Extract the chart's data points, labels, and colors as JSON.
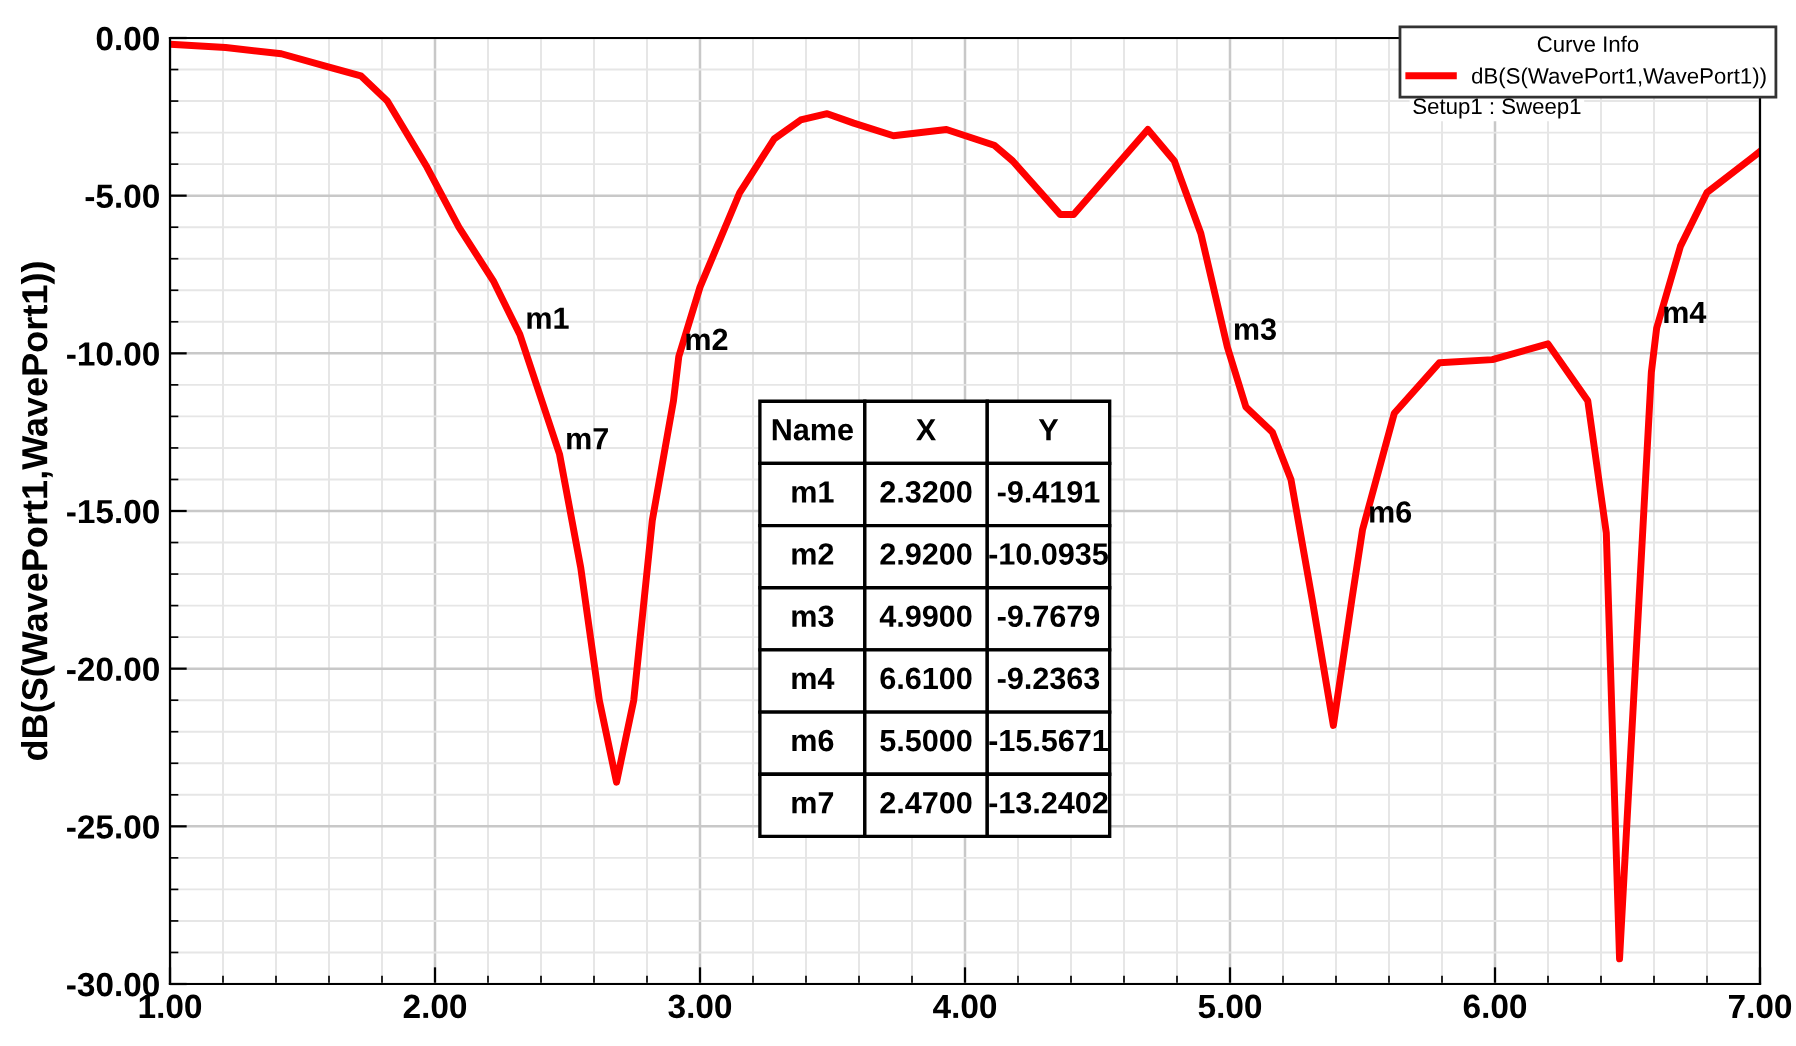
{
  "chart_data": {
    "type": "line",
    "ylabel": "dB(S(WavePort1,WavePort1))",
    "legend_title": "Curve Info",
    "legend": "top right",
    "grid": true,
    "line_style": "solid",
    "xlim": [
      1.0,
      7.0
    ],
    "xticks": [
      {
        "value": 1,
        "label": "1.00"
      },
      {
        "value": 2,
        "label": "2.00"
      },
      {
        "value": 3,
        "label": "3.00"
      },
      {
        "value": 4,
        "label": "4.00"
      },
      {
        "value": 5,
        "label": "5.00"
      },
      {
        "value": 6,
        "label": "6.00"
      },
      {
        "value": 7,
        "label": "7.00"
      }
    ],
    "ylim": [
      -30.0,
      0.0
    ],
    "yticks": [
      {
        "value": 0,
        "label": "0.00"
      },
      {
        "value": -5,
        "label": "-5.00"
      },
      {
        "value": -10,
        "label": "-10.00"
      },
      {
        "value": -15,
        "label": "-15.00"
      },
      {
        "value": -20,
        "label": "-20.00"
      },
      {
        "value": -25,
        "label": "-25.00"
      },
      {
        "value": -30,
        "label": "-30.00"
      }
    ],
    "series": [
      {
        "name": "dB(S(WavePort1,WavePort1))",
        "color": "#ff0000",
        "x": [
          1.0,
          1.21,
          1.42,
          1.59,
          1.72,
          1.82,
          1.97,
          2.09,
          2.22,
          2.32,
          2.47,
          2.55,
          2.62,
          2.685,
          2.75,
          2.82,
          2.9,
          2.92,
          3.0,
          3.15,
          3.28,
          3.38,
          3.48,
          3.58,
          3.73,
          3.93,
          4.11,
          4.18,
          4.36,
          4.41,
          4.69,
          4.79,
          4.89,
          4.99,
          5.06,
          5.16,
          5.23,
          5.31,
          5.39,
          5.46,
          5.5,
          5.62,
          5.79,
          5.99,
          6.2,
          6.35,
          6.42,
          6.47,
          6.53,
          6.59,
          6.61,
          6.7,
          6.8,
          6.97,
          7.0
        ],
        "values": [
          -0.2,
          -0.3,
          -0.5,
          -0.9,
          -1.2,
          -2.0,
          -4.1,
          -6.0,
          -7.7,
          -9.4,
          -13.2,
          -16.8,
          -21.0,
          -23.6,
          -21.0,
          -15.3,
          -11.5,
          -10.1,
          -7.9,
          -4.9,
          -3.2,
          -2.6,
          -2.4,
          -2.7,
          -3.1,
          -2.9,
          -3.4,
          -3.9,
          -5.6,
          -5.6,
          -2.9,
          -3.9,
          -6.2,
          -9.8,
          -11.7,
          -12.5,
          -14.0,
          -17.8,
          -21.8,
          -17.8,
          -15.6,
          -11.9,
          -10.3,
          -10.2,
          -9.7,
          -11.5,
          -15.7,
          -29.2,
          -19.9,
          -10.6,
          -9.2,
          -6.6,
          -4.9,
          -3.8,
          -3.6
        ]
      }
    ],
    "annotations": [
      "Setup1 : Sweep1",
      "Name",
      "X",
      "Y",
      "m1",
      "2.3200",
      "-9.4191",
      "m2",
      "2.9200",
      "-10.0935",
      "m3",
      "4.9900",
      "-9.7679",
      "m4",
      "6.6100",
      "-9.2363",
      "m6",
      "5.5000",
      "-15.5671",
      "m7",
      "2.4700",
      "-13.2402",
      {
        "text": "m1",
        "x": 2.32,
        "y": -9.4191
      },
      {
        "text": "m2",
        "x": 2.92,
        "y": -10.0935
      },
      {
        "text": "m3",
        "x": 4.99,
        "y": -9.7679
      },
      {
        "text": "m4",
        "x": 6.61,
        "y": -9.2363
      },
      {
        "text": "m6",
        "x": 5.5,
        "y": -15.5671
      },
      {
        "text": "m7",
        "x": 2.47,
        "y": -13.2402
      }
    ]
  }
}
